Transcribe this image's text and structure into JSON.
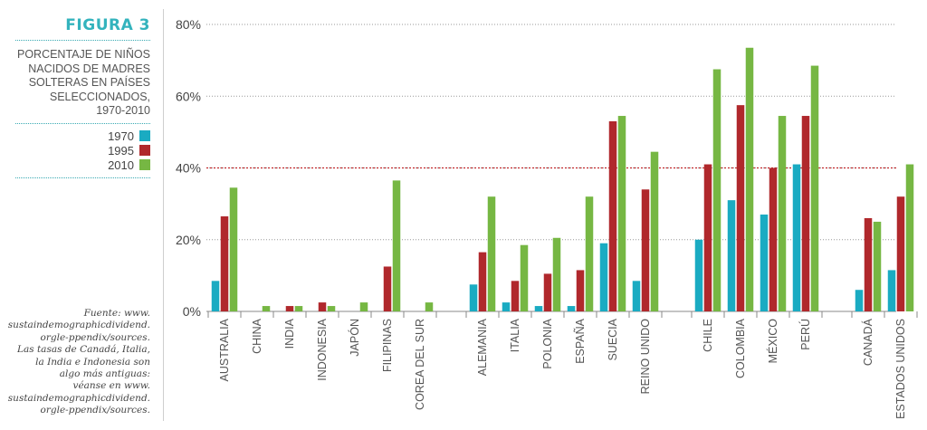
{
  "figure": {
    "label": "FIGURA 3",
    "caption_lines": [
      "PORCENTAJE DE NIÑOS",
      "NACIDOS DE MADRES",
      "SOLTERAS EN PAÍSES",
      "SELECCIONADOS,",
      "1970-2010"
    ],
    "source_lines": [
      "Fuente: www.",
      "sustaindemographicdividend.",
      "orgle-ppendix/sources.",
      "Las tasas de Canadá, Italia,",
      "la India e Indonesia son",
      "algo más antiguas:",
      "véanse en www.",
      "sustaindemographicdividend.",
      "orgle-ppendix/sources."
    ]
  },
  "colors": {
    "1970": "#1aabc2",
    "1995": "#b0282c",
    "2010": "#76b743",
    "reference_line": "#c0282c",
    "grid": "#999999"
  },
  "chart_data": {
    "type": "bar",
    "title": "",
    "xlabel": "",
    "ylabel": "",
    "ylim": [
      0,
      80
    ],
    "yticks": [
      "0%",
      "20%",
      "40%",
      "60%",
      "80%"
    ],
    "ytick_values": [
      0,
      20,
      40,
      60,
      80
    ],
    "reference_line": 40,
    "grid": true,
    "legend_position": "left",
    "categories": [
      "AUSTRALIA",
      "CHINA",
      "INDIA",
      "INDONESIA",
      "JAPÓN",
      "FILIPINAS",
      "COREA DEL SUR",
      "ALEMANIA",
      "ITALIA",
      "POLONIA",
      "ESPAÑA",
      "SUECIA",
      "REINO UNIDO",
      "CHILE",
      "COLOMBIA",
      "MÉXICO",
      "PERÚ",
      "CANADÁ",
      "ESTADOS UNIDOS"
    ],
    "groups": [
      7,
      6,
      4,
      2
    ],
    "series": [
      {
        "name": "1970",
        "values": [
          8.5,
          null,
          null,
          null,
          null,
          null,
          null,
          7.5,
          2.5,
          1.5,
          1.5,
          19,
          8.5,
          20,
          31,
          27,
          41,
          6,
          11.5
        ]
      },
      {
        "name": "1995",
        "values": [
          26.5,
          null,
          1.5,
          2.5,
          null,
          12.5,
          null,
          16.5,
          8.5,
          10.5,
          11.5,
          53,
          34,
          41,
          57.5,
          40,
          54.5,
          26,
          32
        ]
      },
      {
        "name": "2010",
        "values": [
          34.5,
          1.5,
          1.5,
          1.5,
          2.5,
          36.5,
          2.5,
          32,
          18.5,
          20.5,
          32,
          54.5,
          44.5,
          67.5,
          73.5,
          54.5,
          68.5,
          25,
          41
        ]
      }
    ]
  }
}
